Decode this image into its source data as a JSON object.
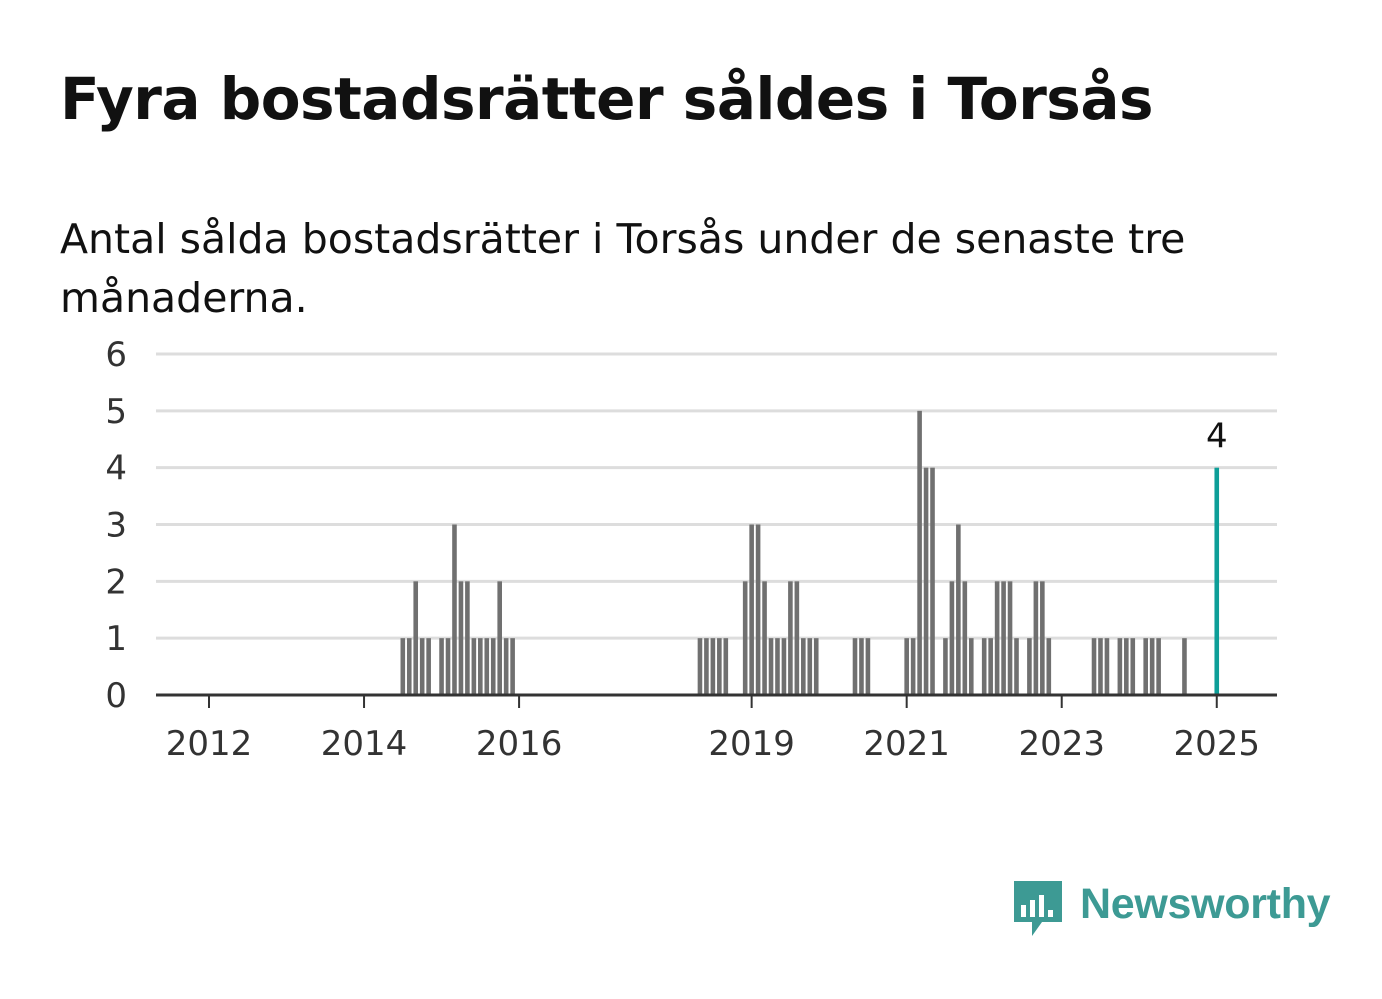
{
  "title": "Fyra bostadsrätter såldes i Torsås",
  "subtitle": "Antal sålda bostadsrätter i Torsås under de senaste tre månaderna.",
  "logo": {
    "text": "Newsworthy",
    "icon": "newsworthy-bar-chart-icon"
  },
  "colors": {
    "bar": "#707070",
    "highlight": "#0d9e98",
    "grid": "#dddddd",
    "axis": "#333333"
  },
  "chart_data": {
    "type": "bar",
    "title": "Fyra bostadsrätter såldes i Torsås",
    "subtitle": "Antal sålda bostadsrätter i Torsås under de senaste tre månaderna.",
    "x_unit": "months since January 2011",
    "ylim": [
      0,
      6
    ],
    "yticks": [
      0,
      1,
      2,
      3,
      4,
      5,
      6
    ],
    "xticks": [
      {
        "label": "2012",
        "value": 12
      },
      {
        "label": "2014",
        "value": 36
      },
      {
        "label": "2016",
        "value": 60
      },
      {
        "label": "2019",
        "value": 96
      },
      {
        "label": "2021",
        "value": 120
      },
      {
        "label": "2023",
        "value": 144
      },
      {
        "label": "2025",
        "value": 168
      }
    ],
    "xlim": [
      0,
      177
    ],
    "grid": true,
    "highlight": {
      "x": 168,
      "value": 4,
      "label": "4"
    },
    "bars": [
      [
        42,
        1
      ],
      [
        43,
        1
      ],
      [
        44,
        2
      ],
      [
        45,
        1
      ],
      [
        46,
        1
      ],
      [
        48,
        1
      ],
      [
        49,
        1
      ],
      [
        50,
        3
      ],
      [
        51,
        2
      ],
      [
        52,
        2
      ],
      [
        53,
        1
      ],
      [
        54,
        1
      ],
      [
        55,
        1
      ],
      [
        56,
        1
      ],
      [
        57,
        2
      ],
      [
        58,
        1
      ],
      [
        59,
        1
      ],
      [
        88,
        1
      ],
      [
        89,
        1
      ],
      [
        90,
        1
      ],
      [
        91,
        1
      ],
      [
        92,
        1
      ],
      [
        95,
        2
      ],
      [
        96,
        3
      ],
      [
        97,
        3
      ],
      [
        98,
        2
      ],
      [
        99,
        1
      ],
      [
        100,
        1
      ],
      [
        101,
        1
      ],
      [
        102,
        2
      ],
      [
        103,
        2
      ],
      [
        104,
        1
      ],
      [
        105,
        1
      ],
      [
        106,
        1
      ],
      [
        112,
        1
      ],
      [
        113,
        1
      ],
      [
        114,
        1
      ],
      [
        120,
        1
      ],
      [
        121,
        1
      ],
      [
        122,
        5
      ],
      [
        123,
        4
      ],
      [
        124,
        4
      ],
      [
        126,
        1
      ],
      [
        127,
        2
      ],
      [
        128,
        3
      ],
      [
        129,
        2
      ],
      [
        130,
        1
      ],
      [
        132,
        1
      ],
      [
        133,
        1
      ],
      [
        134,
        2
      ],
      [
        135,
        2
      ],
      [
        136,
        2
      ],
      [
        137,
        1
      ],
      [
        139,
        1
      ],
      [
        140,
        2
      ],
      [
        141,
        2
      ],
      [
        142,
        1
      ],
      [
        149,
        1
      ],
      [
        150,
        1
      ],
      [
        151,
        1
      ],
      [
        153,
        1
      ],
      [
        154,
        1
      ],
      [
        155,
        1
      ],
      [
        157,
        1
      ],
      [
        158,
        1
      ],
      [
        159,
        1
      ],
      [
        163,
        1
      ],
      [
        168,
        4
      ]
    ]
  }
}
